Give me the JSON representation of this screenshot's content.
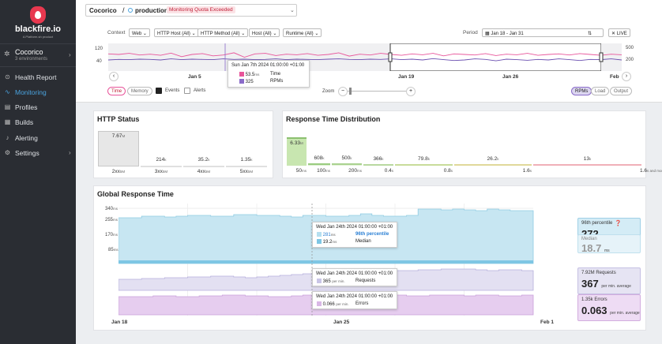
{
  "brand": {
    "name": "blackfire.io",
    "tagline": "A Platform.sh product"
  },
  "org": {
    "name": "Cocorico",
    "environments": "3 environments"
  },
  "nav": [
    {
      "label": "Health Report",
      "icon": "health-icon",
      "active": false
    },
    {
      "label": "Monitoring",
      "icon": "pulse-icon",
      "active": true
    },
    {
      "label": "Profiles",
      "icon": "profiles-icon",
      "active": false
    },
    {
      "label": "Builds",
      "icon": "builds-icon",
      "active": false
    },
    {
      "label": "Alerting",
      "icon": "bell-icon",
      "active": false
    },
    {
      "label": "Settings",
      "icon": "gear-icon",
      "active": false
    }
  ],
  "breadcrumb": {
    "org": "Cocorico",
    "separator": "/",
    "env": "production",
    "badge": "Monitoring Quota Exceeded"
  },
  "filters": {
    "context_label": "Context",
    "context": "Web",
    "http_host": "HTTP Host (All)",
    "http_method": "HTTP Method (All)",
    "host": "Host (All)",
    "runtime": "Runtime (All)",
    "period_label": "Period",
    "period": "Jan 18 - Jan 31",
    "live": "LIVE"
  },
  "overview": {
    "y_left": [
      "120",
      "40"
    ],
    "y_right": [
      "500",
      "200"
    ],
    "x_ticks": [
      "Jan 5",
      "Jan 19",
      "Jan 26",
      "Feb"
    ],
    "tooltip": {
      "date": "Sun Jan 7th 2024 01:00:00 +01:00",
      "rows": [
        {
          "value": "53.5",
          "unit": "ms",
          "label": "Time",
          "color": "#e8559a"
        },
        {
          "value": "325",
          "unit": "",
          "label": "RPMs",
          "color": "#8a6bc9"
        }
      ]
    },
    "time_series": [
      62,
      60,
      64,
      58,
      61,
      57,
      65,
      52,
      60,
      63,
      55,
      58,
      66,
      50,
      62,
      64,
      56,
      61,
      59,
      63,
      57,
      60,
      66,
      54,
      61,
      58,
      64,
      60,
      57,
      62,
      59,
      64,
      55,
      62,
      60,
      58,
      63,
      56,
      61,
      59,
      64,
      57,
      60,
      62,
      58,
      63,
      60,
      57,
      61,
      59
    ],
    "rpm_series": [
      40,
      42,
      41,
      43,
      42,
      40,
      44,
      41,
      43,
      42,
      41,
      44,
      42,
      43,
      41,
      42,
      44,
      41,
      43,
      42,
      41,
      43,
      44,
      42,
      41,
      43,
      42,
      44,
      41,
      43,
      40,
      45,
      41,
      38,
      40,
      44,
      42,
      37,
      43,
      41,
      39,
      42,
      40,
      44,
      41,
      38,
      42,
      41,
      44,
      40
    ],
    "toggles": {
      "time": "Time",
      "memory": "Memory",
      "events": "Events",
      "alerts": "Alerts"
    },
    "zoom": {
      "label": "Zoom",
      "minus": "−",
      "plus": "+"
    },
    "right_toggles": [
      "RPMs",
      "Load",
      "Output"
    ]
  },
  "http_status": {
    "title": "HTTP Status",
    "bars": [
      {
        "value": "7.67",
        "unit": "M",
        "label": "2xx",
        "unit_label": "5M",
        "fraction": 1.0
      },
      {
        "value": "214",
        "unit": "k",
        "label": "3xx",
        "unit_label": "5M",
        "fraction": 0.03
      },
      {
        "value": "35.2",
        "unit": "k",
        "label": "4xx",
        "unit_label": "5M",
        "fraction": 0.01
      },
      {
        "value": "1.35",
        "unit": "k",
        "label": "5xx",
        "unit_label": "5M",
        "fraction": 0.005
      }
    ]
  },
  "rtd": {
    "title": "Response Time Distribution",
    "bars": [
      {
        "value": "6.33",
        "unit": "M",
        "label": "50",
        "label_unit": "ms",
        "color": "#c8e6b0",
        "fraction": 1.0
      },
      {
        "value": "608",
        "unit": "k",
        "label": "100",
        "label_unit": "ms",
        "color": "#dcefd0",
        "fraction": 0.09
      },
      {
        "value": "500",
        "unit": "k",
        "label": "200",
        "label_unit": "ms",
        "color": "#e3f2d8",
        "fraction": 0.08
      },
      {
        "value": "366",
        "unit": "k",
        "label": "0.4",
        "label_unit": "s",
        "color": "#e8f4e0",
        "fraction": 0.06
      },
      {
        "value": "79.8",
        "unit": "k",
        "label": "0.8",
        "label_unit": "s",
        "color": "#eef5e5",
        "fraction": 0.02
      },
      {
        "value": "26.2",
        "unit": "k",
        "label": "1.6",
        "label_unit": "s",
        "color": "#f4f4e4",
        "fraction": 0.01
      },
      {
        "value": "13",
        "unit": "k",
        "label": "1.6",
        "label_unit": "s and more",
        "color": "#fbe6e8",
        "fraction": 0.01
      }
    ]
  },
  "grt": {
    "title": "Global Response Time",
    "y_ticks": [
      {
        "v": "340",
        "u": "ms"
      },
      {
        "v": "255",
        "u": "ms"
      },
      {
        "v": "170",
        "u": "ms"
      },
      {
        "v": "85",
        "u": "ms"
      }
    ],
    "x_ticks": [
      "Jan 18",
      "Jan 25",
      "Feb 1"
    ],
    "tip_time": {
      "date": "Wed Jan 24th 2024 01:00:00 +01:00",
      "rows": [
        {
          "value": "281",
          "unit": "ms",
          "label": "96th percentile",
          "color": "#b5dff0",
          "highlight": true
        },
        {
          "value": "19.2",
          "unit": "ms",
          "label": "Median",
          "color": "#7ec6e4",
          "highlight": false
        }
      ]
    },
    "tip_req": {
      "date": "Wed Jan 24th 2024 01:00:00 +01:00",
      "value": "365",
      "unit": "per min.",
      "label": "Requests",
      "color": "#c9c5e6"
    },
    "tip_err": {
      "date": "Wed Jan 24th 2024 01:00:00 +01:00",
      "value": "0.066",
      "unit": "per min.",
      "label": "Errors",
      "color": "#d9b8e6"
    },
    "p96": {
      "title": "96th percentile",
      "value": "272",
      "unit": "ms"
    },
    "median": {
      "title": "Median",
      "value": "18.7",
      "unit": "ms"
    },
    "requests": {
      "title": "7.92M Requests",
      "value": "367",
      "unit": "per min. average"
    },
    "errors": {
      "title": "1.35k Errors",
      "value": "0.063",
      "unit": "per min. average"
    }
  }
}
